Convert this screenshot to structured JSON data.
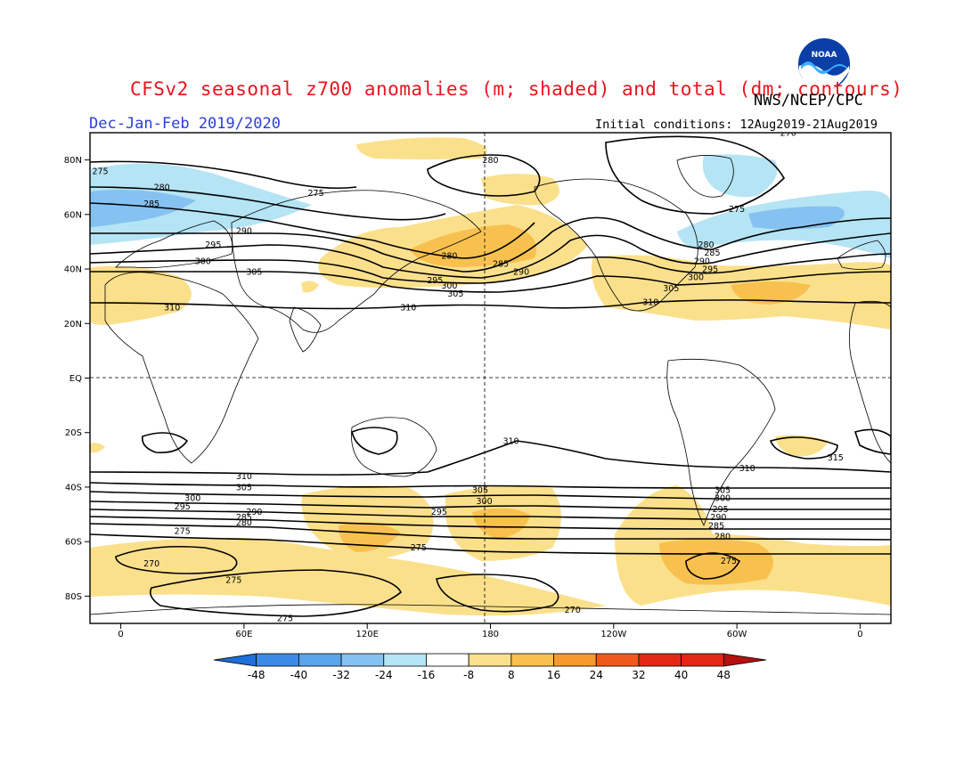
{
  "header": {
    "title": "CFSv2 seasonal z700 anomalies (m; shaded) and total (dm; contours)",
    "agency": "NWS/NCEP/CPC",
    "period": "Dec-Jan-Feb 2019/2020",
    "initial_conditions": "Initial conditions: 12Aug2019-21Aug2019",
    "logo_text": "NOAA"
  },
  "axes": {
    "lat_ticks": [
      {
        "label": "80N",
        "lat": 80
      },
      {
        "label": "60N",
        "lat": 60
      },
      {
        "label": "40N",
        "lat": 40
      },
      {
        "label": "20N",
        "lat": 20
      },
      {
        "label": "EQ",
        "lat": 0
      },
      {
        "label": "20S",
        "lat": -20
      },
      {
        "label": "40S",
        "lat": -40
      },
      {
        "label": "60S",
        "lat": -60
      },
      {
        "label": "80S",
        "lat": -80
      }
    ],
    "lon_ticks": [
      {
        "label": "0",
        "lon": 0
      },
      {
        "label": "60E",
        "lon": 60
      },
      {
        "label": "120E",
        "lon": 120
      },
      {
        "label": "180",
        "lon": 180
      },
      {
        "label": "120W",
        "lon": 240
      },
      {
        "label": "60W",
        "lon": 300
      },
      {
        "label": "0",
        "lon": 360
      }
    ],
    "lon_range": [
      -15,
      375
    ],
    "lat_range": [
      -90,
      90
    ]
  },
  "colorbar": {
    "labels": [
      "-48",
      "-40",
      "-32",
      "-24",
      "-16",
      "-8",
      "8",
      "16",
      "24",
      "32",
      "40",
      "48"
    ],
    "colors": [
      "#1e6fd9",
      "#3c8ae6",
      "#5aa4ec",
      "#86c2f1",
      "#b5e4f4",
      "#ffffff",
      "#fbe08c",
      "#f8c14f",
      "#f59a2b",
      "#ef5a1c",
      "#e02814",
      "#b50f0f"
    ]
  },
  "contours": {
    "nh": [
      {
        "value": 275,
        "lat": 75
      },
      {
        "value": 280,
        "lat": 69
      },
      {
        "value": 285,
        "lat": 63
      },
      {
        "value": 290,
        "lat": 55
      },
      {
        "value": 295,
        "lat": 48
      },
      {
        "value": 300,
        "lat": 43
      },
      {
        "value": 305,
        "lat": 38
      },
      {
        "value": 310,
        "lat": 27
      }
    ],
    "sh": [
      {
        "value": 310,
        "lat": -35
      },
      {
        "value": 305,
        "lat": -40
      },
      {
        "value": 300,
        "lat": -44
      },
      {
        "value": 295,
        "lat": -48
      },
      {
        "value": 290,
        "lat": -51
      },
      {
        "value": 285,
        "lat": -54
      },
      {
        "value": 280,
        "lat": -57
      },
      {
        "value": 275,
        "lat": -62
      },
      {
        "value": 270,
        "lat": -70
      }
    ],
    "labels": [
      {
        "text": "275",
        "lon": -10,
        "lat": 76
      },
      {
        "text": "280",
        "lon": 20,
        "lat": 70
      },
      {
        "text": "285",
        "lon": 15,
        "lat": 64
      },
      {
        "text": "275",
        "lon": 95,
        "lat": 68
      },
      {
        "text": "290",
        "lon": 60,
        "lat": 54
      },
      {
        "text": "295",
        "lon": 45,
        "lat": 49
      },
      {
        "text": "300",
        "lon": 40,
        "lat": 43
      },
      {
        "text": "305",
        "lon": 65,
        "lat": 39
      },
      {
        "text": "310",
        "lon": 25,
        "lat": 26
      },
      {
        "text": "310",
        "lon": 140,
        "lat": 26
      },
      {
        "text": "280",
        "lon": 180,
        "lat": 80
      },
      {
        "text": "280",
        "lon": 160,
        "lat": 45
      },
      {
        "text": "285",
        "lon": 185,
        "lat": 42
      },
      {
        "text": "290",
        "lon": 195,
        "lat": 39
      },
      {
        "text": "295",
        "lon": 153,
        "lat": 36
      },
      {
        "text": "300",
        "lon": 160,
        "lat": 34
      },
      {
        "text": "305",
        "lon": 163,
        "lat": 31
      },
      {
        "text": "275",
        "lon": 300,
        "lat": 62
      },
      {
        "text": "280",
        "lon": 285,
        "lat": 49
      },
      {
        "text": "285",
        "lon": 288,
        "lat": 46
      },
      {
        "text": "290",
        "lon": 283,
        "lat": 43
      },
      {
        "text": "295",
        "lon": 287,
        "lat": 40
      },
      {
        "text": "300",
        "lon": 280,
        "lat": 37
      },
      {
        "text": "305",
        "lon": 268,
        "lat": 33
      },
      {
        "text": "310",
        "lon": 258,
        "lat": 28
      },
      {
        "text": "270",
        "lon": 325,
        "lat": 90
      },
      {
        "text": "310",
        "lon": 190,
        "lat": -23
      },
      {
        "text": "310",
        "lon": 305,
        "lat": -33
      },
      {
        "text": "315",
        "lon": 348,
        "lat": -29
      },
      {
        "text": "310",
        "lon": 60,
        "lat": -36
      },
      {
        "text": "305",
        "lon": 60,
        "lat": -40
      },
      {
        "text": "300",
        "lon": 35,
        "lat": -44
      },
      {
        "text": "295",
        "lon": 30,
        "lat": -47
      },
      {
        "text": "290",
        "lon": 65,
        "lat": -49
      },
      {
        "text": "285",
        "lon": 60,
        "lat": -51
      },
      {
        "text": "280",
        "lon": 60,
        "lat": -53
      },
      {
        "text": "275",
        "lon": 30,
        "lat": -56
      },
      {
        "text": "270",
        "lon": 15,
        "lat": -68
      },
      {
        "text": "275",
        "lon": 55,
        "lat": -74
      },
      {
        "text": "275",
        "lon": 80,
        "lat": -88
      },
      {
        "text": "305",
        "lon": 175,
        "lat": -41
      },
      {
        "text": "300",
        "lon": 177,
        "lat": -45
      },
      {
        "text": "295",
        "lon": 155,
        "lat": -49
      },
      {
        "text": "275",
        "lon": 145,
        "lat": -62
      },
      {
        "text": "270",
        "lon": 220,
        "lat": -85
      },
      {
        "text": "305",
        "lon": 293,
        "lat": -41
      },
      {
        "text": "300",
        "lon": 293,
        "lat": -44
      },
      {
        "text": "295",
        "lon": 292,
        "lat": -48
      },
      {
        "text": "290",
        "lon": 291,
        "lat": -51
      },
      {
        "text": "285",
        "lon": 290,
        "lat": -54
      },
      {
        "text": "280",
        "lon": 293,
        "lat": -58
      },
      {
        "text": "275",
        "lon": 296,
        "lat": -67
      }
    ]
  }
}
